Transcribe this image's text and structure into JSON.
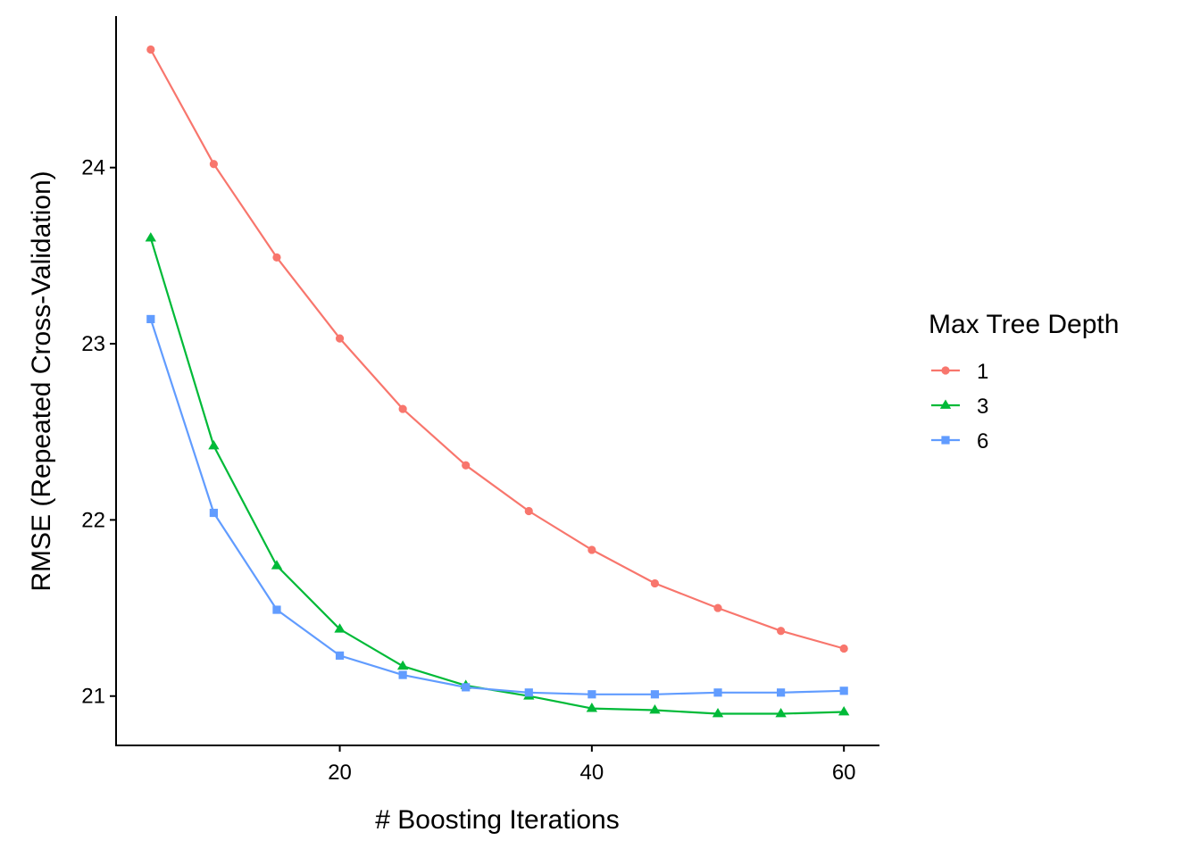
{
  "chart_data": {
    "type": "line",
    "title": "",
    "xlabel": "# Boosting Iterations",
    "ylabel": "RMSE (Repeated Cross-Validation)",
    "x": [
      5,
      10,
      15,
      20,
      25,
      30,
      35,
      40,
      45,
      50,
      55,
      60
    ],
    "xlim": [
      2.25,
      62.75
    ],
    "ylim": [
      20.72,
      24.86
    ],
    "xticks": [
      20,
      40,
      60
    ],
    "yticks": [
      21,
      22,
      23,
      24
    ],
    "grid": false,
    "legend": {
      "title": "Max Tree Depth",
      "position": "right"
    },
    "series": [
      {
        "name": "1",
        "color": "#F8766D",
        "marker": "circle",
        "values": [
          24.67,
          24.02,
          23.49,
          23.03,
          22.63,
          22.31,
          22.05,
          21.83,
          21.64,
          21.5,
          21.37,
          21.27
        ]
      },
      {
        "name": "3",
        "color": "#00BA38",
        "marker": "triangle",
        "values": [
          23.6,
          22.42,
          21.74,
          21.38,
          21.17,
          21.06,
          21.0,
          20.93,
          20.92,
          20.9,
          20.9,
          20.91
        ]
      },
      {
        "name": "6",
        "color": "#619CFF",
        "marker": "square",
        "values": [
          23.14,
          22.04,
          21.49,
          21.23,
          21.12,
          21.05,
          21.02,
          21.01,
          21.01,
          21.02,
          21.02,
          21.03
        ]
      }
    ]
  }
}
